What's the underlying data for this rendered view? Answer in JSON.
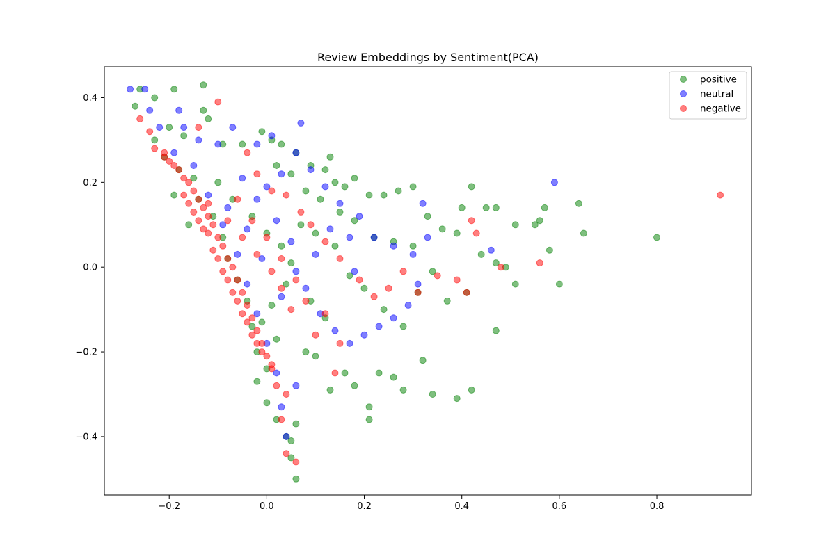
{
  "chart_data": {
    "type": "scatter",
    "title": "Review Embeddings by Sentiment(PCA)",
    "xlabel": "",
    "ylabel": "",
    "xlim": [
      -0.333,
      0.994
    ],
    "ylim": [
      -0.538,
      0.473
    ],
    "xticks": [
      -0.2,
      0.0,
      0.2,
      0.4,
      0.6,
      0.8
    ],
    "yticks": [
      -0.4,
      -0.2,
      0.0,
      0.2,
      0.4
    ],
    "xtick_labels": [
      "−0.2",
      "0.0",
      "0.2",
      "0.4",
      "0.6",
      "0.8"
    ],
    "ytick_labels": [
      "−0.4",
      "−0.2",
      "0.0",
      "0.2",
      "0.4"
    ],
    "grid": false,
    "legend_position": "top-right",
    "point_alpha": 0.5,
    "series": [
      {
        "name": "positive",
        "color": "#008000",
        "points": [
          [
            -0.27,
            0.38
          ],
          [
            -0.26,
            0.42
          ],
          [
            -0.23,
            0.4
          ],
          [
            -0.19,
            0.42
          ],
          [
            -0.13,
            0.43
          ],
          [
            -0.2,
            0.33
          ],
          [
            -0.17,
            0.31
          ],
          [
            -0.13,
            0.37
          ],
          [
            -0.12,
            0.35
          ],
          [
            -0.09,
            0.29
          ],
          [
            -0.05,
            0.29
          ],
          [
            -0.01,
            0.32
          ],
          [
            0.01,
            0.3
          ],
          [
            0.03,
            0.29
          ],
          [
            0.06,
            0.27
          ],
          [
            0.09,
            0.24
          ],
          [
            0.13,
            0.26
          ],
          [
            0.12,
            0.23
          ],
          [
            0.14,
            0.2
          ],
          [
            0.16,
            0.19
          ],
          [
            0.18,
            0.21
          ],
          [
            0.21,
            0.17
          ],
          [
            0.24,
            0.17
          ],
          [
            0.27,
            0.18
          ],
          [
            0.3,
            0.19
          ],
          [
            0.33,
            0.12
          ],
          [
            0.36,
            0.09
          ],
          [
            0.39,
            0.08
          ],
          [
            0.4,
            0.14
          ],
          [
            0.42,
            0.19
          ],
          [
            0.45,
            0.14
          ],
          [
            0.47,
            0.14
          ],
          [
            0.51,
            0.1
          ],
          [
            0.55,
            0.1
          ],
          [
            0.56,
            0.11
          ],
          [
            0.57,
            0.14
          ],
          [
            0.58,
            0.04
          ],
          [
            0.6,
            -0.04
          ],
          [
            0.64,
            0.15
          ],
          [
            0.65,
            0.08
          ],
          [
            0.8,
            0.07
          ],
          [
            0.44,
            0.03
          ],
          [
            0.47,
            0.01
          ],
          [
            0.49,
            0.0
          ],
          [
            0.51,
            -0.04
          ],
          [
            0.47,
            -0.15
          ],
          [
            0.42,
            -0.29
          ],
          [
            0.41,
            -0.06
          ],
          [
            0.39,
            -0.31
          ],
          [
            0.37,
            -0.08
          ],
          [
            0.34,
            -0.3
          ],
          [
            0.32,
            -0.22
          ],
          [
            0.28,
            -0.29
          ],
          [
            0.26,
            -0.26
          ],
          [
            0.23,
            -0.25
          ],
          [
            0.21,
            -0.33
          ],
          [
            0.21,
            -0.36
          ],
          [
            0.18,
            -0.28
          ],
          [
            0.16,
            -0.25
          ],
          [
            0.13,
            -0.29
          ],
          [
            0.1,
            -0.21
          ],
          [
            0.08,
            -0.2
          ],
          [
            0.06,
            -0.37
          ],
          [
            0.05,
            -0.41
          ],
          [
            0.05,
            -0.45
          ],
          [
            0.06,
            -0.5
          ],
          [
            0.04,
            -0.4
          ],
          [
            0.02,
            -0.36
          ],
          [
            0.0,
            -0.32
          ],
          [
            -0.02,
            -0.27
          ],
          [
            0.2,
            -0.05
          ],
          [
            0.24,
            -0.1
          ],
          [
            0.28,
            -0.14
          ],
          [
            0.31,
            -0.06
          ],
          [
            0.34,
            -0.01
          ],
          [
            0.3,
            0.05
          ],
          [
            0.26,
            0.06
          ],
          [
            0.22,
            0.07
          ],
          [
            0.18,
            0.11
          ],
          [
            0.15,
            0.13
          ],
          [
            0.11,
            0.16
          ],
          [
            0.08,
            0.18
          ],
          [
            0.05,
            0.22
          ],
          [
            0.02,
            0.24
          ],
          [
            0.14,
            0.05
          ],
          [
            0.1,
            0.08
          ],
          [
            0.07,
            0.1
          ],
          [
            0.17,
            -0.02
          ],
          [
            0.12,
            -0.12
          ],
          [
            0.09,
            -0.08
          ],
          [
            -0.23,
            0.3
          ],
          [
            -0.21,
            0.26
          ],
          [
            -0.18,
            0.23
          ],
          [
            -0.15,
            0.21
          ],
          [
            -0.14,
            0.16
          ],
          [
            -0.11,
            0.12
          ],
          [
            -0.09,
            0.07
          ],
          [
            -0.08,
            0.02
          ],
          [
            -0.06,
            -0.03
          ],
          [
            -0.04,
            -0.08
          ],
          [
            -0.03,
            -0.14
          ],
          [
            -0.02,
            -0.2
          ],
          [
            0.0,
            -0.24
          ],
          [
            -0.19,
            0.17
          ],
          [
            -0.16,
            0.1
          ],
          [
            -0.1,
            0.2
          ],
          [
            -0.07,
            0.16
          ],
          [
            -0.03,
            0.12
          ],
          [
            0.0,
            0.08
          ],
          [
            0.03,
            0.05
          ],
          [
            0.05,
            0.01
          ],
          [
            0.04,
            -0.04
          ],
          [
            0.01,
            -0.09
          ],
          [
            -0.01,
            -0.13
          ],
          [
            0.02,
            -0.17
          ]
        ]
      },
      {
        "name": "neutral",
        "color": "#0000ff",
        "points": [
          [
            -0.28,
            0.42
          ],
          [
            -0.25,
            0.42
          ],
          [
            -0.24,
            0.37
          ],
          [
            -0.22,
            0.33
          ],
          [
            -0.18,
            0.37
          ],
          [
            -0.17,
            0.33
          ],
          [
            -0.14,
            0.3
          ],
          [
            -0.1,
            0.29
          ],
          [
            -0.07,
            0.33
          ],
          [
            -0.02,
            0.29
          ],
          [
            0.01,
            0.31
          ],
          [
            0.07,
            0.34
          ],
          [
            0.06,
            0.27
          ],
          [
            0.03,
            0.22
          ],
          [
            0.09,
            0.23
          ],
          [
            0.12,
            0.19
          ],
          [
            0.15,
            0.15
          ],
          [
            0.19,
            0.12
          ],
          [
            0.22,
            0.07
          ],
          [
            0.26,
            0.05
          ],
          [
            0.3,
            0.03
          ],
          [
            0.32,
            0.15
          ],
          [
            0.33,
            0.07
          ],
          [
            0.31,
            -0.04
          ],
          [
            0.29,
            -0.09
          ],
          [
            0.26,
            -0.12
          ],
          [
            0.23,
            -0.14
          ],
          [
            0.2,
            -0.16
          ],
          [
            0.17,
            -0.18
          ],
          [
            0.14,
            -0.15
          ],
          [
            0.11,
            -0.11
          ],
          [
            0.08,
            -0.05
          ],
          [
            0.1,
            0.03
          ],
          [
            0.13,
            0.09
          ],
          [
            0.17,
            0.07
          ],
          [
            0.18,
            -0.01
          ],
          [
            0.46,
            0.04
          ],
          [
            0.59,
            0.2
          ],
          [
            0.06,
            -0.28
          ],
          [
            0.03,
            -0.33
          ],
          [
            0.04,
            -0.4
          ],
          [
            0.02,
            -0.25
          ],
          [
            0.0,
            -0.18
          ],
          [
            -0.02,
            -0.11
          ],
          [
            -0.04,
            -0.04
          ],
          [
            -0.06,
            0.03
          ],
          [
            -0.09,
            0.1
          ],
          [
            -0.12,
            0.17
          ],
          [
            -0.15,
            0.24
          ],
          [
            -0.19,
            0.27
          ],
          [
            -0.05,
            0.21
          ],
          [
            -0.02,
            0.16
          ],
          [
            0.02,
            0.11
          ],
          [
            0.05,
            0.06
          ],
          [
            0.06,
            -0.01
          ],
          [
            0.03,
            -0.07
          ],
          [
            -0.01,
            0.02
          ],
          [
            -0.04,
            0.09
          ],
          [
            -0.08,
            0.14
          ],
          [
            0.0,
            0.19
          ]
        ]
      },
      {
        "name": "negative",
        "color": "#ff0000",
        "points": [
          [
            -0.26,
            0.35
          ],
          [
            -0.24,
            0.32
          ],
          [
            -0.23,
            0.28
          ],
          [
            -0.21,
            0.27
          ],
          [
            -0.14,
            0.33
          ],
          [
            -0.1,
            0.39
          ],
          [
            -0.04,
            0.27
          ],
          [
            -0.02,
            0.22
          ],
          [
            0.01,
            0.18
          ],
          [
            0.04,
            0.17
          ],
          [
            0.07,
            0.13
          ],
          [
            0.09,
            0.1
          ],
          [
            0.12,
            0.06
          ],
          [
            0.15,
            0.02
          ],
          [
            0.19,
            -0.03
          ],
          [
            0.22,
            -0.07
          ],
          [
            0.25,
            -0.05
          ],
          [
            0.28,
            -0.01
          ],
          [
            0.31,
            -0.06
          ],
          [
            0.35,
            -0.02
          ],
          [
            0.39,
            -0.03
          ],
          [
            0.41,
            -0.06
          ],
          [
            0.42,
            0.11
          ],
          [
            0.43,
            0.08
          ],
          [
            0.48,
            0.0
          ],
          [
            0.56,
            0.01
          ],
          [
            0.93,
            0.17
          ],
          [
            0.14,
            -0.25
          ],
          [
            0.15,
            -0.18
          ],
          [
            0.12,
            -0.11
          ],
          [
            0.1,
            -0.16
          ],
          [
            0.06,
            -0.46
          ],
          [
            0.04,
            -0.44
          ],
          [
            0.03,
            -0.36
          ],
          [
            0.04,
            -0.3
          ],
          [
            0.02,
            -0.28
          ],
          [
            0.01,
            -0.24
          ],
          [
            0.0,
            -0.21
          ],
          [
            -0.01,
            -0.18
          ],
          [
            -0.02,
            -0.15
          ],
          [
            -0.03,
            -0.12
          ],
          [
            -0.04,
            -0.09
          ],
          [
            -0.05,
            -0.06
          ],
          [
            -0.06,
            -0.03
          ],
          [
            -0.07,
            0.0
          ],
          [
            -0.08,
            0.02
          ],
          [
            -0.09,
            0.05
          ],
          [
            -0.1,
            0.07
          ],
          [
            -0.11,
            0.1
          ],
          [
            -0.12,
            0.12
          ],
          [
            -0.13,
            0.14
          ],
          [
            -0.14,
            0.16
          ],
          [
            -0.15,
            0.18
          ],
          [
            -0.16,
            0.2
          ],
          [
            -0.17,
            0.21
          ],
          [
            -0.18,
            0.23
          ],
          [
            -0.19,
            0.24
          ],
          [
            -0.2,
            0.25
          ],
          [
            -0.21,
            0.26
          ],
          [
            -0.13,
            0.09
          ],
          [
            -0.11,
            0.04
          ],
          [
            -0.09,
            -0.01
          ],
          [
            -0.07,
            -0.06
          ],
          [
            -0.05,
            -0.11
          ],
          [
            -0.03,
            -0.16
          ],
          [
            -0.01,
            -0.2
          ],
          [
            0.01,
            -0.23
          ],
          [
            -0.15,
            0.13
          ],
          [
            -0.12,
            0.08
          ],
          [
            -0.1,
            0.02
          ],
          [
            -0.08,
            -0.03
          ],
          [
            -0.06,
            -0.08
          ],
          [
            -0.04,
            -0.13
          ],
          [
            -0.02,
            -0.18
          ],
          [
            -0.17,
            0.17
          ],
          [
            -0.14,
            0.11
          ],
          [
            -0.16,
            0.15
          ],
          [
            -0.12,
            0.15
          ],
          [
            -0.08,
            0.11
          ],
          [
            -0.05,
            0.07
          ],
          [
            -0.02,
            0.03
          ],
          [
            0.01,
            -0.01
          ],
          [
            0.03,
            -0.05
          ],
          [
            0.05,
            -0.1
          ],
          [
            -0.06,
            0.16
          ],
          [
            -0.03,
            0.11
          ],
          [
            0.0,
            0.07
          ],
          [
            0.03,
            0.02
          ],
          [
            0.06,
            -0.03
          ],
          [
            0.08,
            -0.08
          ]
        ]
      }
    ]
  }
}
